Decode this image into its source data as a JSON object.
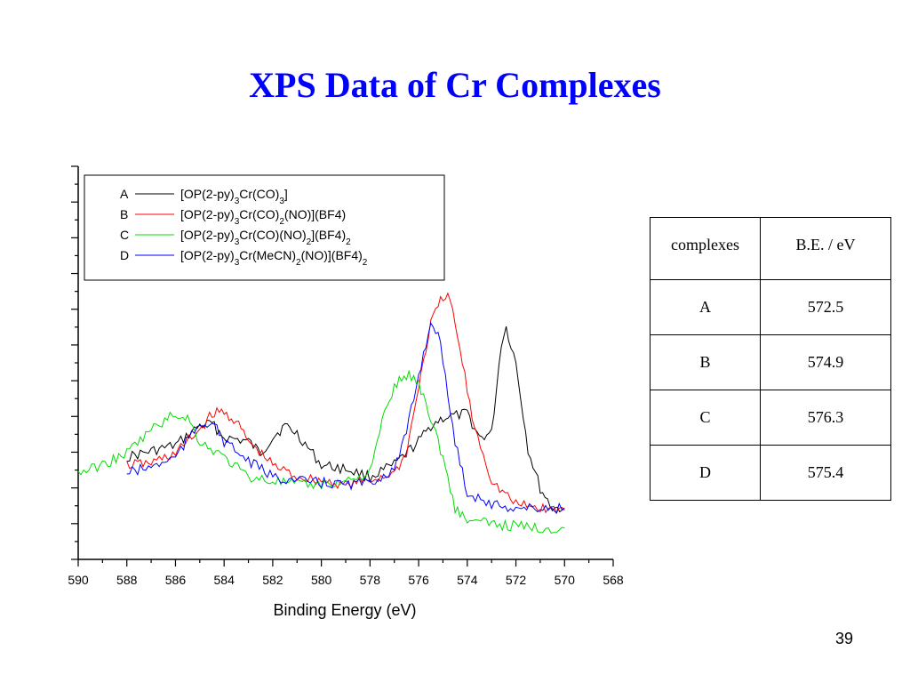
{
  "title": "XPS Data of Cr Complexes",
  "page_number": "39",
  "table": {
    "headers": [
      "complexes",
      "B.E. / eV"
    ],
    "rows": [
      [
        "A",
        "572.5"
      ],
      [
        "B",
        "574.9"
      ],
      [
        "C",
        "576.3"
      ],
      [
        "D",
        "575.4"
      ]
    ]
  },
  "colors": {
    "title": "#0000ff",
    "A": "#000000",
    "B": "#ff0000",
    "C": "#00dd00",
    "D": "#0000ff"
  },
  "chart_data": {
    "type": "line",
    "title": "",
    "xlabel": "Binding Energy (eV)",
    "ylabel": "",
    "xlim": [
      590,
      568
    ],
    "x_reversed": true,
    "xticks": [
      590,
      588,
      586,
      584,
      582,
      580,
      578,
      576,
      574,
      572,
      570,
      568
    ],
    "y_tick_labels": false,
    "legend_position": "top-left",
    "series": [
      {
        "name": "A",
        "label": "[OP(2-py)3Cr(CO)3]",
        "points": [
          [
            588,
            0.26
          ],
          [
            587,
            0.275
          ],
          [
            586,
            0.29
          ],
          [
            585,
            0.34
          ],
          [
            584.5,
            0.345
          ],
          [
            584,
            0.31
          ],
          [
            583,
            0.3
          ],
          [
            582.5,
            0.27
          ],
          [
            582,
            0.31
          ],
          [
            581.5,
            0.34
          ],
          [
            581,
            0.32
          ],
          [
            580,
            0.24
          ],
          [
            579,
            0.23
          ],
          [
            578,
            0.21
          ],
          [
            577,
            0.24
          ],
          [
            576,
            0.3
          ],
          [
            575.5,
            0.34
          ],
          [
            575,
            0.36
          ],
          [
            574,
            0.37
          ],
          [
            573.5,
            0.31
          ],
          [
            573,
            0.32
          ],
          [
            572.6,
            0.55
          ],
          [
            572.4,
            0.59
          ],
          [
            572,
            0.5
          ],
          [
            571.5,
            0.28
          ],
          [
            571,
            0.18
          ],
          [
            570.5,
            0.13
          ],
          [
            570,
            0.13
          ]
        ]
      },
      {
        "name": "B",
        "label": "[OP(2-py)3Cr(CO)2(NO)](BF4)",
        "points": [
          [
            588,
            0.24
          ],
          [
            587,
            0.245
          ],
          [
            586,
            0.27
          ],
          [
            585,
            0.33
          ],
          [
            584.5,
            0.37
          ],
          [
            584,
            0.375
          ],
          [
            583.5,
            0.35
          ],
          [
            583,
            0.3
          ],
          [
            582,
            0.24
          ],
          [
            581,
            0.21
          ],
          [
            580,
            0.2
          ],
          [
            579,
            0.19
          ],
          [
            578,
            0.2
          ],
          [
            577,
            0.22
          ],
          [
            576.5,
            0.27
          ],
          [
            576,
            0.44
          ],
          [
            575.5,
            0.6
          ],
          [
            575,
            0.67
          ],
          [
            574.7,
            0.66
          ],
          [
            574.2,
            0.5
          ],
          [
            573.8,
            0.36
          ],
          [
            573,
            0.2
          ],
          [
            572,
            0.14
          ],
          [
            571,
            0.13
          ],
          [
            570,
            0.125
          ]
        ]
      },
      {
        "name": "C",
        "label": "[OP(2-py)3Cr(CO)(NO)2](BF4)2",
        "points": [
          [
            590,
            0.22
          ],
          [
            589,
            0.24
          ],
          [
            588,
            0.27
          ],
          [
            587,
            0.33
          ],
          [
            586,
            0.37
          ],
          [
            585.5,
            0.36
          ],
          [
            585,
            0.3
          ],
          [
            584,
            0.26
          ],
          [
            583,
            0.21
          ],
          [
            582,
            0.2
          ],
          [
            581,
            0.19
          ],
          [
            580,
            0.19
          ],
          [
            579,
            0.2
          ],
          [
            578,
            0.22
          ],
          [
            577.5,
            0.35
          ],
          [
            577,
            0.44
          ],
          [
            576.5,
            0.47
          ],
          [
            576,
            0.45
          ],
          [
            575.5,
            0.36
          ],
          [
            575,
            0.26
          ],
          [
            574.5,
            0.13
          ],
          [
            574,
            0.1
          ],
          [
            573,
            0.09
          ],
          [
            572,
            0.085
          ],
          [
            571,
            0.08
          ],
          [
            570,
            0.08
          ]
        ]
      },
      {
        "name": "D",
        "label": "[OP(2-py)3Cr(MeCN)2(NO)](BF4)2",
        "points": [
          [
            588,
            0.22
          ],
          [
            587,
            0.235
          ],
          [
            586,
            0.26
          ],
          [
            585,
            0.345
          ],
          [
            584.5,
            0.35
          ],
          [
            584,
            0.3
          ],
          [
            583,
            0.25
          ],
          [
            582,
            0.21
          ],
          [
            581,
            0.2
          ],
          [
            580,
            0.195
          ],
          [
            579,
            0.19
          ],
          [
            578,
            0.195
          ],
          [
            577,
            0.23
          ],
          [
            576.5,
            0.32
          ],
          [
            576,
            0.47
          ],
          [
            575.5,
            0.6
          ],
          [
            575.2,
            0.58
          ],
          [
            575,
            0.5
          ],
          [
            574.5,
            0.3
          ],
          [
            574,
            0.17
          ],
          [
            573,
            0.14
          ],
          [
            572,
            0.13
          ],
          [
            571,
            0.13
          ],
          [
            570,
            0.13
          ]
        ]
      }
    ]
  }
}
